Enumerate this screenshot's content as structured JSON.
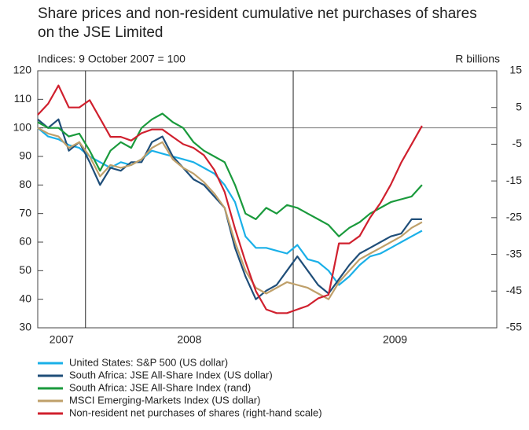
{
  "chart_data": {
    "type": "line",
    "title": "Share prices and non-resident cumulative net purchases of shares on the JSE Limited",
    "y_label": "Indices: 9 October 2007 = 100",
    "y2_label": "R billions",
    "x": [
      2007.77,
      2007.82,
      2007.87,
      2007.92,
      2007.97,
      2008.02,
      2008.07,
      2008.12,
      2008.17,
      2008.22,
      2008.27,
      2008.32,
      2008.37,
      2008.42,
      2008.47,
      2008.52,
      2008.57,
      2008.62,
      2008.67,
      2008.72,
      2008.77,
      2008.82,
      2008.87,
      2008.92,
      2008.97,
      2009.02,
      2009.07,
      2009.12,
      2009.17,
      2009.22,
      2009.27,
      2009.32,
      2009.37,
      2009.42,
      2009.47,
      2009.52,
      2009.57,
      2009.62
    ],
    "xlim": [
      2007.77,
      2009.98
    ],
    "xticks": [
      2007,
      2008,
      2009
    ],
    "ylim": [
      30,
      120
    ],
    "yticks": [
      30,
      40,
      50,
      60,
      70,
      80,
      90,
      100,
      110,
      120
    ],
    "y2lim": [
      -55,
      15
    ],
    "y2ticks": [
      15,
      5,
      -5,
      -15,
      -25,
      -35,
      -45,
      -55
    ],
    "hline": 100,
    "series": [
      {
        "name": "United States: S&P 500 (US dollar)",
        "color": "#1ab0e8",
        "values": [
          100,
          97,
          96,
          94,
          93,
          90,
          88,
          86,
          88,
          87,
          89,
          92,
          91,
          90,
          89,
          88,
          86,
          84,
          80,
          74,
          62,
          58,
          58,
          57,
          56,
          59,
          54,
          53,
          50,
          45,
          48,
          52,
          55,
          56,
          58,
          60,
          62,
          64
        ]
      },
      {
        "name": "South Africa: JSE All-Share Index (US dollar)",
        "color": "#1f4e79",
        "values": [
          103,
          100,
          103,
          92,
          95,
          88,
          80,
          86,
          85,
          88,
          88,
          95,
          97,
          90,
          86,
          82,
          80,
          76,
          72,
          58,
          48,
          40,
          43,
          45,
          50,
          55,
          50,
          45,
          42,
          47,
          52,
          56,
          58,
          60,
          62,
          63,
          68,
          68
        ]
      },
      {
        "name": "South Africa: JSE All-Share Index (rand)",
        "color": "#1a9a3c",
        "values": [
          102,
          100,
          100,
          97,
          98,
          92,
          85,
          92,
          95,
          93,
          100,
          103,
          105,
          102,
          100,
          95,
          92,
          90,
          88,
          80,
          70,
          68,
          72,
          70,
          73,
          72,
          70,
          68,
          66,
          62,
          65,
          67,
          70,
          72,
          74,
          75,
          76,
          80
        ]
      },
      {
        "name": "MSCI Emerging-Markets Index (US dollar)",
        "color": "#bfa06a",
        "values": [
          100,
          98,
          97,
          93,
          95,
          90,
          83,
          87,
          86,
          87,
          89,
          93,
          95,
          89,
          86,
          84,
          81,
          77,
          72,
          60,
          50,
          44,
          42,
          44,
          46,
          45,
          44,
          42,
          40,
          46,
          50,
          54,
          56,
          58,
          60,
          62,
          65,
          67
        ]
      },
      {
        "name": "Non-resident net purchases of shares (right-hand scale)",
        "color": "#d0202e",
        "axis": "y2",
        "values": [
          3,
          6,
          11,
          5,
          5,
          7,
          2,
          -3,
          -3,
          -4,
          -2,
          -1,
          -1,
          -3,
          -5,
          -6,
          -8,
          -12,
          -18,
          -28,
          -37,
          -45,
          -50,
          -51,
          -51,
          -50,
          -49,
          -47,
          -46,
          -32,
          -32,
          -30,
          -25,
          -21,
          -16,
          -10,
          -5,
          0
        ]
      }
    ]
  }
}
